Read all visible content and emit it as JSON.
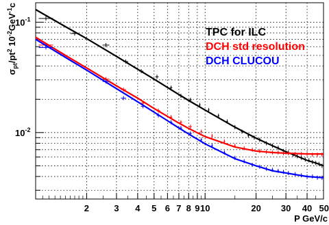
{
  "chart_data": {
    "type": "scatter",
    "title": "",
    "xlabel": "P GeV/c",
    "ylabel": "σpt/pt² 10⁻²GeV⁻¹c",
    "x_scale": "log",
    "y_scale": "log",
    "xlim": [
      1.0,
      50
    ],
    "ylim": [
      0.0025,
      0.15
    ],
    "grid": true,
    "legend_placement": "top-right",
    "x_ticks": [
      {
        "value": 2,
        "label": "2"
      },
      {
        "value": 3,
        "label": "3"
      },
      {
        "value": 4,
        "label": "4"
      },
      {
        "value": 5,
        "label": "5"
      },
      {
        "value": 6,
        "label": "6"
      },
      {
        "value": 7,
        "label": "7"
      },
      {
        "value": 8,
        "label": "8"
      },
      {
        "value": 9,
        "label": "9"
      },
      {
        "value": 10,
        "label": "10"
      },
      {
        "value": 20,
        "label": "20"
      },
      {
        "value": 30,
        "label": "30"
      },
      {
        "value": 40,
        "label": "40"
      },
      {
        "value": 50,
        "label": "50"
      }
    ],
    "y_ticks": [
      {
        "value": 0.01,
        "label": "10⁻²",
        "base": "10",
        "exp": "-2"
      },
      {
        "value": 0.1,
        "label": "10⁻¹",
        "base": "10",
        "exp": "-1"
      }
    ],
    "y_label_parts": {
      "sigma": "σ",
      "sub": "pt",
      "rest1": "/pt",
      "sup1": "2",
      "rest2": " 10",
      "sup2": "-2",
      "rest3": "GeV",
      "sup3": "-1",
      "rest4": "c"
    },
    "series": [
      {
        "name": "TPC for ILC",
        "color": "#000000",
        "curve": [
          [
            1.0,
            0.13
          ],
          [
            1.5,
            0.091
          ],
          [
            2,
            0.071
          ],
          [
            3,
            0.049
          ],
          [
            4,
            0.0375
          ],
          [
            5,
            0.0305
          ],
          [
            6,
            0.0256
          ],
          [
            7,
            0.0221
          ],
          [
            8,
            0.0195
          ],
          [
            10,
            0.016
          ],
          [
            15,
            0.0112
          ],
          [
            20,
            0.0089
          ],
          [
            25,
            0.0076
          ],
          [
            30,
            0.0067
          ],
          [
            35,
            0.0061
          ],
          [
            40,
            0.0056
          ],
          [
            45,
            0.0053
          ],
          [
            50,
            0.005
          ]
        ],
        "points": [
          [
            1.15,
            0.108,
            0.17
          ],
          [
            1.7,
            0.079,
            0.1
          ],
          [
            2.6,
            0.062,
            0.08
          ],
          [
            3.4,
            0.044,
            0.06
          ],
          [
            4.2,
            0.036,
            0.05
          ],
          [
            5.2,
            0.032,
            0.04
          ],
          [
            6.3,
            0.0255,
            0.03
          ],
          [
            7.2,
            0.0215,
            0.03
          ],
          [
            8.2,
            0.0198,
            0.03
          ],
          [
            9.3,
            0.0178,
            0.02
          ],
          [
            10.5,
            0.016,
            0.02
          ],
          [
            12,
            0.0142,
            0.02
          ],
          [
            13.5,
            0.0126,
            0.02
          ],
          [
            15,
            0.0112,
            0.02
          ],
          [
            16.5,
            0.0102,
            0.02
          ],
          [
            18,
            0.0094,
            0.02
          ],
          [
            19.5,
            0.009,
            0.02
          ],
          [
            21,
            0.0086,
            0.02
          ],
          [
            23,
            0.008,
            0.02
          ],
          [
            25,
            0.0076,
            0.02
          ],
          [
            27,
            0.0073,
            0.02
          ],
          [
            29,
            0.0068,
            0.02
          ],
          [
            31,
            0.0066,
            0.02
          ],
          [
            33,
            0.0063,
            0.02
          ],
          [
            35,
            0.0061,
            0.02
          ],
          [
            37,
            0.0059,
            0.02
          ],
          [
            39,
            0.0057,
            0.02
          ],
          [
            41,
            0.0056,
            0.02
          ],
          [
            43,
            0.0054,
            0.02
          ],
          [
            45,
            0.0053,
            0.02
          ],
          [
            47,
            0.0052,
            0.02
          ],
          [
            49,
            0.005,
            0.02
          ]
        ]
      },
      {
        "name": "DCH std resolution",
        "color": "#ff0000",
        "curve": [
          [
            1.0,
            0.073
          ],
          [
            1.5,
            0.05
          ],
          [
            2,
            0.0385
          ],
          [
            3,
            0.0265
          ],
          [
            4,
            0.0205
          ],
          [
            5,
            0.0165
          ],
          [
            6,
            0.014
          ],
          [
            7,
            0.0122
          ],
          [
            8,
            0.0109
          ],
          [
            10,
            0.0092
          ],
          [
            15,
            0.0074
          ],
          [
            20,
            0.0068
          ],
          [
            25,
            0.0066
          ],
          [
            30,
            0.0065
          ],
          [
            40,
            0.0064
          ],
          [
            50,
            0.0064
          ]
        ],
        "points": [
          [
            1.15,
            0.062,
            0.17
          ],
          [
            2.6,
            0.0305,
            0.08
          ],
          [
            3.3,
            0.0245,
            0.06
          ],
          [
            4.3,
            0.0185,
            0.05
          ],
          [
            5.3,
            0.0158,
            0.04
          ],
          [
            6.3,
            0.0138,
            0.03
          ],
          [
            7.2,
            0.0124,
            0.03
          ],
          [
            8.2,
            0.0113,
            0.03
          ],
          [
            9.5,
            0.0102,
            0.02
          ],
          [
            11,
            0.0093,
            0.02
          ],
          [
            13,
            0.0083,
            0.02
          ],
          [
            15,
            0.0076,
            0.02
          ],
          [
            17,
            0.0072,
            0.02
          ],
          [
            19,
            0.007,
            0.02
          ],
          [
            21,
            0.0068,
            0.02
          ],
          [
            23,
            0.0067,
            0.02
          ],
          [
            25,
            0.0066,
            0.02
          ],
          [
            27,
            0.0066,
            0.02
          ],
          [
            29,
            0.0065,
            0.02
          ],
          [
            31,
            0.0065,
            0.02
          ],
          [
            34,
            0.0064,
            0.02
          ],
          [
            37,
            0.0064,
            0.02
          ],
          [
            40,
            0.0064,
            0.02
          ],
          [
            43,
            0.0063,
            0.02
          ],
          [
            46,
            0.0063,
            0.02
          ],
          [
            49,
            0.0063,
            0.02
          ]
        ]
      },
      {
        "name": "DCH CLUCOU",
        "color": "#0000ff",
        "curve": [
          [
            1.0,
            0.07
          ],
          [
            1.5,
            0.048
          ],
          [
            2,
            0.0368
          ],
          [
            3,
            0.025
          ],
          [
            4,
            0.019
          ],
          [
            5,
            0.0153
          ],
          [
            6,
            0.0128
          ],
          [
            7,
            0.011
          ],
          [
            8,
            0.0097
          ],
          [
            10,
            0.0079
          ],
          [
            15,
            0.0058
          ],
          [
            20,
            0.005
          ],
          [
            25,
            0.0045
          ],
          [
            30,
            0.0043
          ],
          [
            40,
            0.004
          ],
          [
            50,
            0.0039
          ]
        ],
        "points": [
          [
            1.15,
            0.059,
            0.17
          ],
          [
            2.6,
            0.029,
            0.08
          ],
          [
            3.3,
            0.0205,
            0.06
          ],
          [
            4.3,
            0.0173,
            0.05
          ],
          [
            5.3,
            0.0143,
            0.04
          ],
          [
            6.3,
            0.0124,
            0.03
          ],
          [
            7.2,
            0.011,
            0.03
          ],
          [
            8.2,
            0.0098,
            0.03
          ],
          [
            9.5,
            0.0086,
            0.02
          ],
          [
            11,
            0.0076,
            0.02
          ],
          [
            13,
            0.0066,
            0.02
          ],
          [
            15,
            0.0059,
            0.02
          ],
          [
            17,
            0.0055,
            0.02
          ],
          [
            19,
            0.0051,
            0.02
          ],
          [
            21,
            0.0049,
            0.02
          ],
          [
            23,
            0.0047,
            0.02
          ],
          [
            25,
            0.0046,
            0.02
          ],
          [
            27,
            0.0045,
            0.02
          ],
          [
            29,
            0.0044,
            0.02
          ],
          [
            31,
            0.0043,
            0.02
          ],
          [
            34,
            0.0042,
            0.02
          ],
          [
            37,
            0.0041,
            0.02
          ],
          [
            40,
            0.004,
            0.02
          ],
          [
            43,
            0.004,
            0.02
          ],
          [
            46,
            0.0039,
            0.02
          ],
          [
            49,
            0.0039,
            0.02
          ]
        ]
      }
    ]
  }
}
